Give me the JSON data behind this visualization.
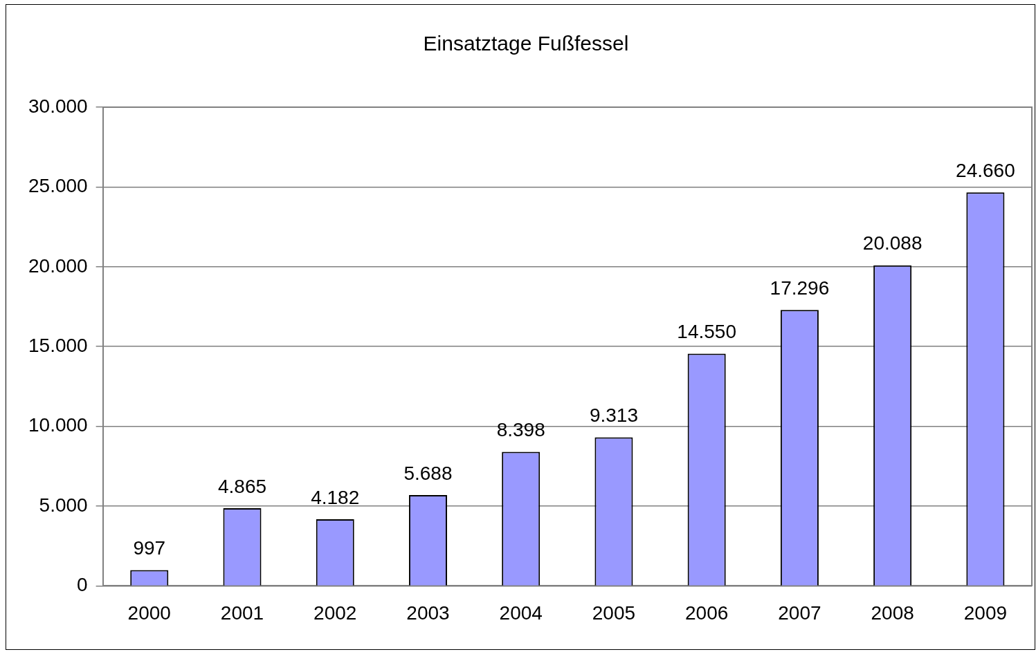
{
  "chart_data": {
    "type": "bar",
    "title": "Einsatztage Fußfessel",
    "categories": [
      "2000",
      "2001",
      "2002",
      "2003",
      "2004",
      "2005",
      "2006",
      "2007",
      "2008",
      "2009"
    ],
    "values": [
      997,
      4865,
      4182,
      5688,
      8398,
      9313,
      14550,
      17296,
      20088,
      24660
    ],
    "value_labels": [
      "997",
      "4.865",
      "4.182",
      "5.688",
      "8.398",
      "9.313",
      "14.550",
      "17.296",
      "20.088",
      "24.660"
    ],
    "color": "#9999ff",
    "ylim": [
      0,
      30000
    ],
    "yticks": [
      {
        "value": 0,
        "label": "0"
      },
      {
        "value": 5000,
        "label": "5.000"
      },
      {
        "value": 10000,
        "label": "10.000"
      },
      {
        "value": 15000,
        "label": "15.000"
      },
      {
        "value": 20000,
        "label": "20.000"
      },
      {
        "value": 25000,
        "label": "25.000"
      },
      {
        "value": 30000,
        "label": "30.000"
      }
    ],
    "grid": "y",
    "legend": false
  }
}
